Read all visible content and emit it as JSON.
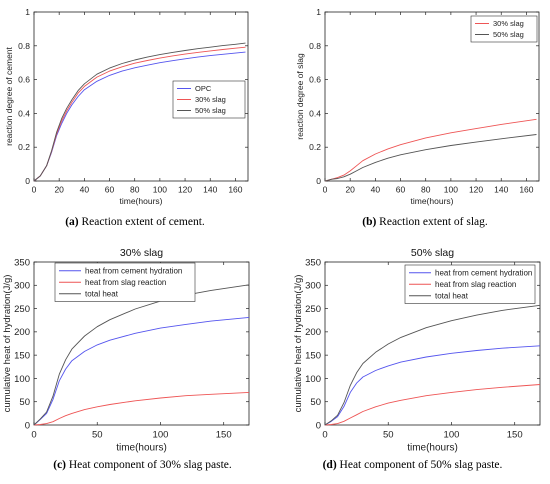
{
  "captions": [
    {
      "label": "(a)",
      "text": " Reaction extent of cement."
    },
    {
      "label": "(b)",
      "text": " Reaction extent of slag."
    },
    {
      "label": "(c)",
      "text": " Heat component of 30% slag paste."
    },
    {
      "label": "(d)",
      "text": " Heat component of 50% slag paste."
    }
  ],
  "chart_data": [
    {
      "type": "line",
      "title": "",
      "xlabel": "time(hours)",
      "ylabel": "reaction degree of cement",
      "xlim": [
        0,
        170
      ],
      "ylim": [
        0,
        1
      ],
      "xticks": [
        0,
        20,
        40,
        60,
        80,
        100,
        120,
        140,
        160
      ],
      "yticks": [
        0,
        0.2,
        0.4,
        0.6,
        0.8,
        1
      ],
      "legend": "middle-right",
      "series": [
        {
          "name": "OPC",
          "color": "#5555ee",
          "x": [
            0,
            5,
            10,
            14,
            18,
            22,
            26,
            30,
            35,
            40,
            50,
            60,
            70,
            80,
            90,
            100,
            110,
            120,
            130,
            140,
            150,
            160,
            168
          ],
          "y": [
            0,
            0.03,
            0.09,
            0.17,
            0.27,
            0.34,
            0.4,
            0.45,
            0.5,
            0.54,
            0.59,
            0.625,
            0.65,
            0.67,
            0.685,
            0.7,
            0.712,
            0.723,
            0.733,
            0.742,
            0.75,
            0.757,
            0.763
          ]
        },
        {
          "name": "30% slag",
          "color": "#ee5555",
          "x": [
            0,
            5,
            10,
            14,
            18,
            22,
            26,
            30,
            35,
            40,
            50,
            60,
            70,
            80,
            90,
            100,
            110,
            120,
            130,
            140,
            150,
            160,
            168
          ],
          "y": [
            0,
            0.03,
            0.09,
            0.175,
            0.28,
            0.355,
            0.415,
            0.465,
            0.52,
            0.56,
            0.615,
            0.65,
            0.676,
            0.697,
            0.713,
            0.727,
            0.74,
            0.751,
            0.761,
            0.77,
            0.778,
            0.786,
            0.792
          ]
        },
        {
          "name": "50% slag",
          "color": "#555555",
          "x": [
            0,
            5,
            10,
            14,
            18,
            22,
            26,
            30,
            35,
            40,
            50,
            60,
            70,
            80,
            90,
            100,
            110,
            120,
            130,
            140,
            150,
            160,
            168
          ],
          "y": [
            0,
            0.03,
            0.09,
            0.18,
            0.29,
            0.37,
            0.43,
            0.48,
            0.535,
            0.575,
            0.632,
            0.668,
            0.695,
            0.716,
            0.733,
            0.748,
            0.761,
            0.772,
            0.783,
            0.792,
            0.801,
            0.809,
            0.816
          ]
        }
      ]
    },
    {
      "type": "line",
      "title": "",
      "xlabel": "time(hours)",
      "ylabel": "reaction degree of slag",
      "xlim": [
        0,
        170
      ],
      "ylim": [
        0,
        1
      ],
      "xticks": [
        0,
        20,
        40,
        60,
        80,
        100,
        120,
        140,
        160
      ],
      "yticks": [
        0,
        0.2,
        0.4,
        0.6,
        0.8,
        1
      ],
      "legend": "top-right",
      "series": [
        {
          "name": "30% slag",
          "color": "#ee5555",
          "x": [
            0,
            5,
            10,
            15,
            20,
            25,
            30,
            40,
            50,
            60,
            80,
            100,
            120,
            140,
            168
          ],
          "y": [
            0,
            0.01,
            0.02,
            0.035,
            0.06,
            0.09,
            0.12,
            0.16,
            0.19,
            0.215,
            0.255,
            0.285,
            0.31,
            0.335,
            0.365
          ]
        },
        {
          "name": "50% slag",
          "color": "#555555",
          "x": [
            0,
            5,
            10,
            15,
            20,
            25,
            30,
            40,
            50,
            60,
            80,
            100,
            120,
            140,
            168
          ],
          "y": [
            0,
            0.01,
            0.015,
            0.025,
            0.04,
            0.06,
            0.08,
            0.11,
            0.135,
            0.155,
            0.185,
            0.21,
            0.23,
            0.25,
            0.275
          ]
        }
      ]
    },
    {
      "type": "line",
      "title": "30% slag",
      "xlabel": "time(hours)",
      "ylabel": "cumulative heat of hydration(J/g)",
      "xlim": [
        0,
        170
      ],
      "ylim": [
        0,
        350
      ],
      "xticks": [
        0,
        50,
        100,
        150
      ],
      "yticks": [
        0,
        50,
        100,
        150,
        200,
        250,
        300,
        350
      ],
      "legend": "top-left",
      "series": [
        {
          "name": "heat from cement hydration",
          "color": "#5555ee",
          "x": [
            0,
            5,
            10,
            15,
            20,
            25,
            30,
            40,
            50,
            60,
            80,
            100,
            120,
            140,
            170
          ],
          "y": [
            0,
            12,
            25,
            55,
            95,
            120,
            138,
            158,
            172,
            182,
            197,
            208,
            216,
            223,
            231
          ]
        },
        {
          "name": "heat from slag reaction",
          "color": "#ee5555",
          "x": [
            0,
            5,
            10,
            15,
            20,
            25,
            30,
            40,
            50,
            60,
            80,
            100,
            120,
            140,
            170
          ],
          "y": [
            0,
            1,
            3,
            7,
            14,
            20,
            25,
            33,
            39,
            44,
            52,
            58,
            63,
            66,
            70
          ]
        },
        {
          "name": "total heat",
          "color": "#555555",
          "x": [
            0,
            5,
            10,
            15,
            20,
            25,
            30,
            40,
            50,
            60,
            80,
            100,
            120,
            140,
            170
          ],
          "y": [
            0,
            13,
            28,
            62,
            109,
            140,
            163,
            191,
            211,
            226,
            249,
            266,
            279,
            289,
            301
          ]
        }
      ]
    },
    {
      "type": "line",
      "title": "50% slag",
      "xlabel": "time(hours)",
      "ylabel": "cumulative heat of hydration(J/g)",
      "xlim": [
        0,
        170
      ],
      "ylim": [
        0,
        350
      ],
      "xticks": [
        0,
        50,
        100,
        150
      ],
      "yticks": [
        0,
        50,
        100,
        150,
        200,
        250,
        300,
        350
      ],
      "legend": "top-right",
      "series": [
        {
          "name": "heat from cement hydration",
          "color": "#5555ee",
          "x": [
            0,
            5,
            10,
            15,
            20,
            25,
            30,
            40,
            50,
            60,
            80,
            100,
            120,
            140,
            170
          ],
          "y": [
            0,
            8,
            18,
            40,
            70,
            90,
            103,
            117,
            127,
            135,
            146,
            154,
            160,
            165,
            170
          ]
        },
        {
          "name": "heat from slag reaction",
          "color": "#ee5555",
          "x": [
            0,
            5,
            10,
            15,
            20,
            25,
            30,
            40,
            50,
            60,
            80,
            100,
            120,
            140,
            170
          ],
          "y": [
            0,
            1,
            3,
            8,
            15,
            22,
            29,
            39,
            47,
            53,
            63,
            70,
            76,
            81,
            87
          ]
        },
        {
          "name": "total heat",
          "color": "#555555",
          "x": [
            0,
            5,
            10,
            15,
            20,
            25,
            30,
            40,
            50,
            60,
            80,
            100,
            120,
            140,
            170
          ],
          "y": [
            0,
            9,
            21,
            48,
            85,
            112,
            132,
            156,
            174,
            188,
            209,
            224,
            236,
            246,
            257
          ]
        }
      ]
    }
  ]
}
